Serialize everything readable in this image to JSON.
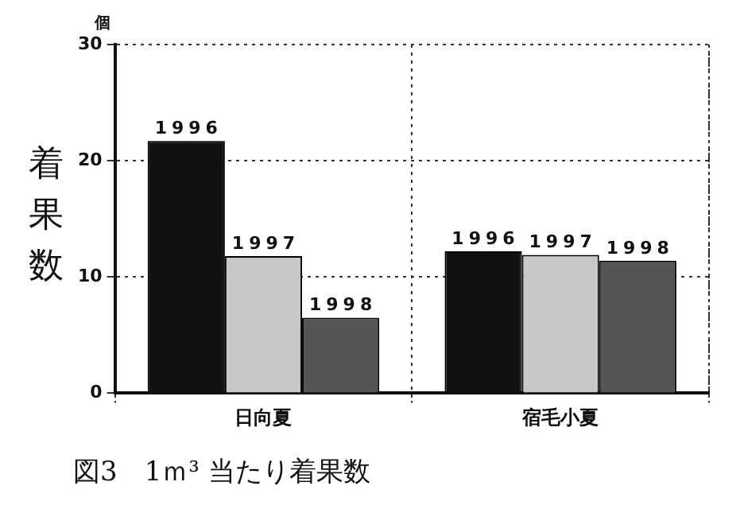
{
  "chart_data": {
    "type": "bar",
    "title": "図3　1ｍ³ 当たり着果数",
    "ylabel": "着果数",
    "annotations": [
      "個"
    ],
    "categories": [
      "日向夏",
      "宿毛小夏"
    ],
    "series": [
      {
        "name": "1996",
        "color": "#111111",
        "values": [
          21.7,
          12.2
        ]
      },
      {
        "name": "1997",
        "color": "#c8c8c8",
        "values": [
          11.8,
          11.9
        ]
      },
      {
        "name": "1998",
        "color": "#555555",
        "values": [
          6.5,
          11.4
        ]
      }
    ],
    "ylim": [
      0,
      30
    ],
    "yticks": [
      0,
      10,
      20,
      30
    ],
    "grid": true,
    "legend": false
  }
}
